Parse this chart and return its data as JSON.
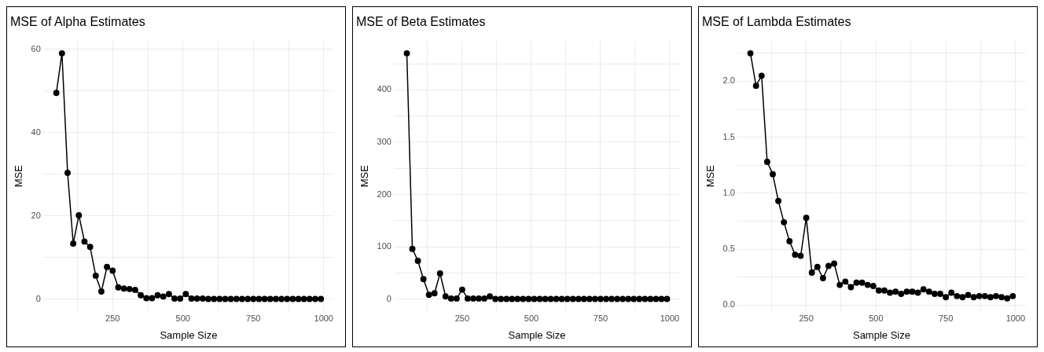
{
  "chart_data": [
    {
      "type": "line",
      "title": "MSE of Alpha Estimates",
      "xlabel": "Sample Size",
      "ylabel": "MSE",
      "marker": "circle",
      "grid": true,
      "x": [
        50,
        70,
        90,
        110,
        130,
        150,
        170,
        190,
        210,
        230,
        250,
        270,
        290,
        310,
        330,
        350,
        370,
        390,
        410,
        430,
        450,
        470,
        490,
        510,
        530,
        550,
        570,
        590,
        610,
        630,
        650,
        670,
        690,
        710,
        730,
        750,
        770,
        790,
        810,
        830,
        850,
        870,
        890,
        910,
        930,
        950,
        970,
        990
      ],
      "series": [
        {
          "color": "#000000",
          "values": [
            49.5,
            59,
            30.3,
            13.3,
            20.1,
            13.8,
            12.5,
            5.6,
            1.8,
            7.7,
            6.8,
            2.8,
            2.5,
            2.4,
            2.2,
            0.9,
            0.2,
            0.2,
            0.9,
            0.6,
            1.2,
            0.1,
            0.1,
            1.2,
            0.1,
            0.1,
            0.1,
            0,
            0,
            0,
            0,
            0,
            0,
            0,
            0,
            0,
            0,
            0,
            0,
            0,
            0,
            0,
            0,
            0,
            0,
            0,
            0,
            0
          ]
        }
      ],
      "xlim": [
        3,
        1037
      ],
      "xticks": [
        {
          "value": 125,
          "label": null
        },
        250,
        {
          "value": 375,
          "label": null
        },
        500,
        {
          "value": 625,
          "label": null
        },
        750,
        {
          "value": 875,
          "label": null
        },
        1000
      ],
      "ylim": [
        -2.95,
        61.95
      ],
      "yticks": [
        0,
        {
          "value": 10,
          "label": null
        },
        20,
        {
          "value": 30,
          "label": null
        },
        40,
        {
          "value": 50,
          "label": null
        },
        60
      ]
    },
    {
      "type": "line",
      "title": "MSE of Beta Estimates",
      "xlabel": "Sample Size",
      "ylabel": "MSE",
      "marker": "circle",
      "grid": true,
      "x": [
        50,
        70,
        90,
        110,
        130,
        150,
        170,
        190,
        210,
        230,
        250,
        270,
        290,
        310,
        330,
        350,
        370,
        390,
        410,
        430,
        450,
        470,
        490,
        510,
        530,
        550,
        570,
        590,
        610,
        630,
        650,
        670,
        690,
        710,
        730,
        750,
        770,
        790,
        810,
        830,
        850,
        870,
        890,
        910,
        930,
        950,
        970,
        990
      ],
      "series": [
        {
          "color": "#000000",
          "values": [
            470,
            96,
            73,
            38,
            8,
            11,
            49,
            5,
            1,
            1,
            18,
            1,
            1,
            1,
            1,
            5,
            0,
            0,
            0,
            0,
            0,
            0,
            0,
            0,
            0,
            0,
            0,
            0,
            0,
            0,
            0,
            0,
            0,
            0,
            0,
            0,
            0,
            0,
            0,
            0,
            0,
            0,
            0,
            0,
            0,
            0,
            0,
            0
          ]
        }
      ],
      "xlim": [
        3,
        1037
      ],
      "xticks": [
        {
          "value": 125,
          "label": null
        },
        250,
        {
          "value": 375,
          "label": null
        },
        500,
        {
          "value": 625,
          "label": null
        },
        750,
        {
          "value": 875,
          "label": null
        },
        1000
      ],
      "ylim": [
        -23.5,
        493.5
      ],
      "yticks": [
        0,
        {
          "value": 50,
          "label": null
        },
        100,
        {
          "value": 150,
          "label": null
        },
        200,
        {
          "value": 250,
          "label": null
        },
        300,
        {
          "value": 350,
          "label": null
        },
        400,
        {
          "value": 450,
          "label": null
        }
      ]
    },
    {
      "type": "line",
      "title": "MSE of Lambda Estimates",
      "xlabel": "Sample Size",
      "ylabel": "MSE",
      "marker": "circle",
      "grid": true,
      "x": [
        50,
        70,
        90,
        110,
        130,
        150,
        170,
        190,
        210,
        230,
        250,
        270,
        290,
        310,
        330,
        350,
        370,
        390,
        410,
        430,
        450,
        470,
        490,
        510,
        530,
        550,
        570,
        590,
        610,
        630,
        650,
        670,
        690,
        710,
        730,
        750,
        770,
        790,
        810,
        830,
        850,
        870,
        890,
        910,
        930,
        950,
        970,
        990
      ],
      "series": [
        {
          "color": "#000000",
          "values": [
            2.25,
            1.96,
            2.05,
            1.28,
            1.17,
            0.93,
            0.74,
            0.57,
            0.45,
            0.44,
            0.78,
            0.29,
            0.34,
            0.24,
            0.35,
            0.37,
            0.18,
            0.21,
            0.16,
            0.2,
            0.2,
            0.18,
            0.17,
            0.13,
            0.13,
            0.11,
            0.12,
            0.1,
            0.12,
            0.12,
            0.11,
            0.14,
            0.12,
            0.1,
            0.1,
            0.07,
            0.11,
            0.08,
            0.07,
            0.09,
            0.07,
            0.08,
            0.08,
            0.07,
            0.08,
            0.07,
            0.06,
            0.08
          ]
        }
      ],
      "xlim": [
        3,
        1037
      ],
      "xticks": [
        {
          "value": 125,
          "label": null
        },
        250,
        {
          "value": 375,
          "label": null
        },
        500,
        {
          "value": 625,
          "label": null
        },
        750,
        {
          "value": 875,
          "label": null
        },
        1000
      ],
      "ylim": [
        -0.056,
        2.36
      ],
      "yticks": [
        {
          "value": 0,
          "label": "0.0"
        },
        {
          "value": 0.25,
          "label": null
        },
        {
          "value": 0.5,
          "label": "0.5"
        },
        {
          "value": 0.75,
          "label": null
        },
        {
          "value": 1,
          "label": "1.0"
        },
        {
          "value": 1.25,
          "label": null
        },
        {
          "value": 1.5,
          "label": "1.5"
        },
        {
          "value": 1.75,
          "label": null
        },
        {
          "value": 2,
          "label": "2.0"
        },
        {
          "value": 2.25,
          "label": null
        }
      ]
    }
  ]
}
